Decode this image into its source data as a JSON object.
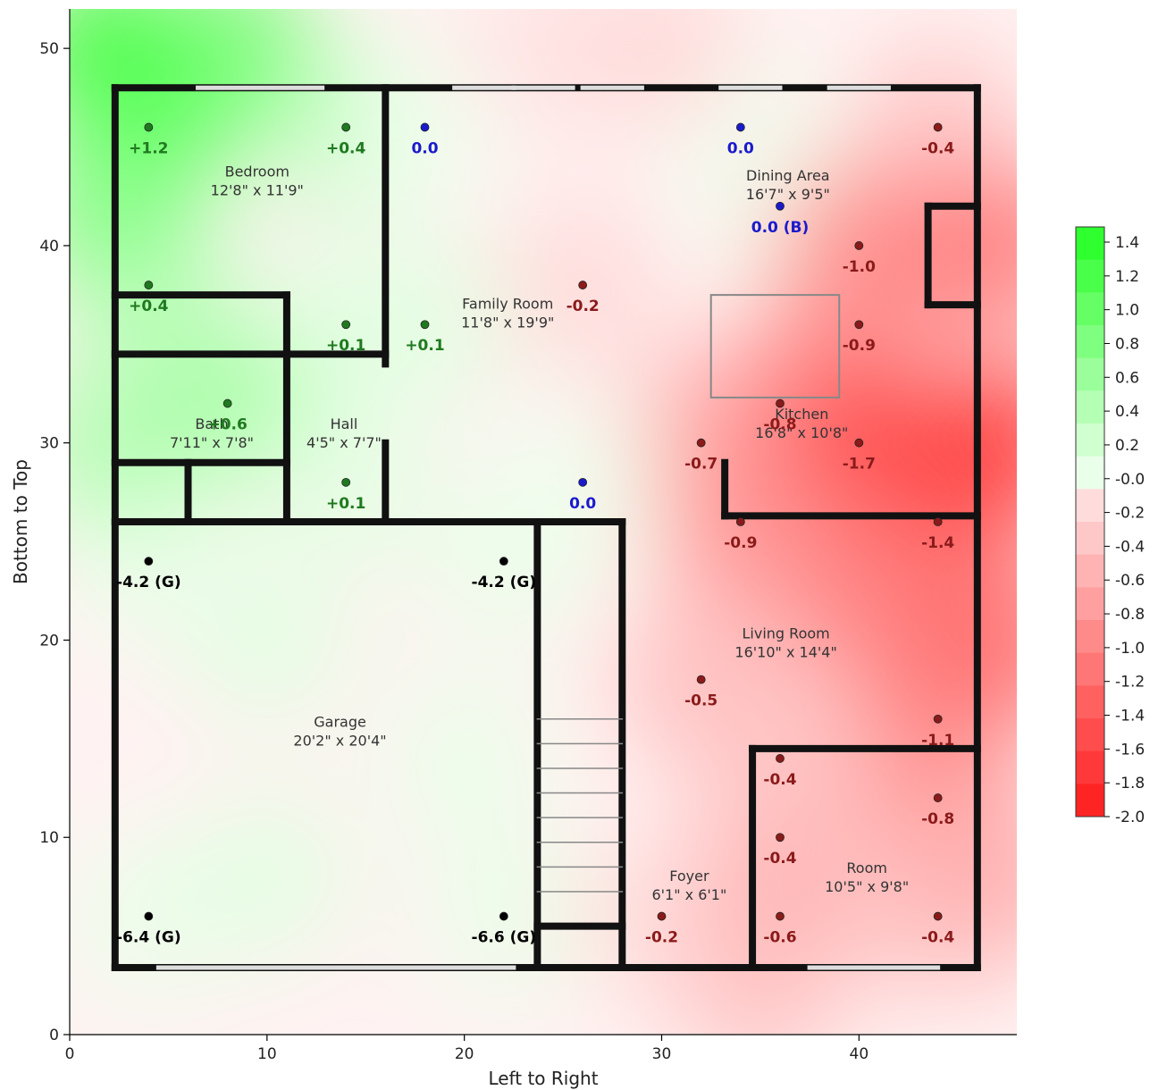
{
  "chart_data": {
    "type": "heatmap",
    "xlabel": "Left to Right",
    "ylabel": "Bottom to Top",
    "xlim": [
      0,
      48
    ],
    "ylim": [
      0,
      52
    ],
    "x_ticks": [
      "0",
      "10",
      "20",
      "30",
      "40"
    ],
    "y_ticks": [
      "0",
      "10",
      "20",
      "30",
      "40",
      "50"
    ],
    "colorbar": {
      "range": [
        -2.0,
        1.5
      ],
      "ticks": [
        "1.4",
        "1.2",
        "1.0",
        "0.8",
        "0.6",
        "0.4",
        "0.2",
        "-0.0",
        "-0.2",
        "-0.4",
        "-0.6",
        "-0.8",
        "-1.0",
        "-1.2",
        "-1.4",
        "-1.6",
        "-1.8",
        "-2.0"
      ],
      "positive_color": "#22ff22",
      "negative_color": "#ff2020"
    },
    "rooms": [
      {
        "name": "Bedroom",
        "dims": "12'8\" x 11'9\"",
        "x": 9.5,
        "y": 43.5
      },
      {
        "name": "Family Room",
        "dims": "11'8\" x 19'9\"",
        "x": 22.2,
        "y": 36.8
      },
      {
        "name": "Dining Area",
        "dims": "16'7\" x 9'5\"",
        "x": 36.4,
        "y": 43.3
      },
      {
        "name": "Bath",
        "dims": "7'11\" x 7'8\"",
        "x": 7.2,
        "y": 30.7
      },
      {
        "name": "Hall",
        "dims": "4'5\" x 7'7\"",
        "x": 13.9,
        "y": 30.7
      },
      {
        "name": "Kitchen",
        "dims": "16'8\" x 10'8\"",
        "x": 37.1,
        "y": 31.2
      },
      {
        "name": "Living Room",
        "dims": "16'10\" x 14'4\"",
        "x": 36.3,
        "y": 20.1
      },
      {
        "name": "Garage",
        "dims": "20'2\" x 20'4\"",
        "x": 13.7,
        "y": 15.6
      },
      {
        "name": "Foyer",
        "dims": "6'1\" x 6'1\"",
        "x": 31.4,
        "y": 7.8
      },
      {
        "name": "Room",
        "dims": "10'5\" x 9'8\"",
        "x": 40.4,
        "y": 8.2
      }
    ],
    "points": [
      {
        "x": 4,
        "y": 46,
        "label": "+1.2",
        "value": 1.2,
        "kind": "pos"
      },
      {
        "x": 14,
        "y": 46,
        "label": "+0.4",
        "value": 0.4,
        "kind": "pos"
      },
      {
        "x": 18,
        "y": 46,
        "label": "0.0",
        "value": 0.0,
        "kind": "zero"
      },
      {
        "x": 34,
        "y": 46,
        "label": "0.0",
        "value": 0.0,
        "kind": "zero"
      },
      {
        "x": 44,
        "y": 46,
        "label": "-0.4",
        "value": -0.4,
        "kind": "neg"
      },
      {
        "x": 36,
        "y": 42,
        "label": "0.0 (B)",
        "value": 0.0,
        "kind": "zero"
      },
      {
        "x": 40,
        "y": 40,
        "label": "-1.0",
        "value": -1.0,
        "kind": "neg"
      },
      {
        "x": 4,
        "y": 38,
        "label": "+0.4",
        "value": 0.4,
        "kind": "pos"
      },
      {
        "x": 26,
        "y": 38,
        "label": "-0.2",
        "value": -0.2,
        "kind": "neg"
      },
      {
        "x": 14,
        "y": 36,
        "label": "+0.1",
        "value": 0.1,
        "kind": "pos"
      },
      {
        "x": 18,
        "y": 36,
        "label": "+0.1",
        "value": 0.1,
        "kind": "pos"
      },
      {
        "x": 40,
        "y": 36,
        "label": "-0.9",
        "value": -0.9,
        "kind": "neg"
      },
      {
        "x": 8,
        "y": 32,
        "label": "+0.6",
        "value": 0.6,
        "kind": "pos"
      },
      {
        "x": 36,
        "y": 32,
        "label": "-0.8",
        "value": -0.8,
        "kind": "neg"
      },
      {
        "x": 32,
        "y": 30,
        "label": "-0.7",
        "value": -0.7,
        "kind": "neg"
      },
      {
        "x": 40,
        "y": 30,
        "label": "-1.7",
        "value": -1.7,
        "kind": "neg"
      },
      {
        "x": 14,
        "y": 28,
        "label": "+0.1",
        "value": 0.1,
        "kind": "pos"
      },
      {
        "x": 26,
        "y": 28,
        "label": "0.0",
        "value": 0.0,
        "kind": "zero"
      },
      {
        "x": 34,
        "y": 26,
        "label": "-0.9",
        "value": -0.9,
        "kind": "neg"
      },
      {
        "x": 44,
        "y": 26,
        "label": "-1.4",
        "value": -1.4,
        "kind": "neg"
      },
      {
        "x": 4,
        "y": 24,
        "label": "-4.2 (G)",
        "value": -4.2,
        "kind": "garage"
      },
      {
        "x": 22,
        "y": 24,
        "label": "-4.2 (G)",
        "value": -4.2,
        "kind": "garage"
      },
      {
        "x": 32,
        "y": 18,
        "label": "-0.5",
        "value": -0.5,
        "kind": "neg"
      },
      {
        "x": 44,
        "y": 16,
        "label": "-1.1",
        "value": -1.1,
        "kind": "neg"
      },
      {
        "x": 36,
        "y": 14,
        "label": "-0.4",
        "value": -0.4,
        "kind": "neg"
      },
      {
        "x": 44,
        "y": 12,
        "label": "-0.8",
        "value": -0.8,
        "kind": "neg"
      },
      {
        "x": 36,
        "y": 10,
        "label": "-0.4",
        "value": -0.4,
        "kind": "neg"
      },
      {
        "x": 4,
        "y": 6,
        "label": "-6.4 (G)",
        "value": -6.4,
        "kind": "garage"
      },
      {
        "x": 22,
        "y": 6,
        "label": "-6.6 (G)",
        "value": -6.6,
        "kind": "garage"
      },
      {
        "x": 30,
        "y": 6,
        "label": "-0.2",
        "value": -0.2,
        "kind": "neg"
      },
      {
        "x": 36,
        "y": 6,
        "label": "-0.6",
        "value": -0.6,
        "kind": "neg"
      },
      {
        "x": 44,
        "y": 6,
        "label": "-0.4",
        "value": -0.4,
        "kind": "neg"
      }
    ],
    "label_colors": {
      "pos": "#1f7a1f",
      "zero": "#1a1acc",
      "neg": "#8b1a1a",
      "garage": "#000000"
    }
  }
}
